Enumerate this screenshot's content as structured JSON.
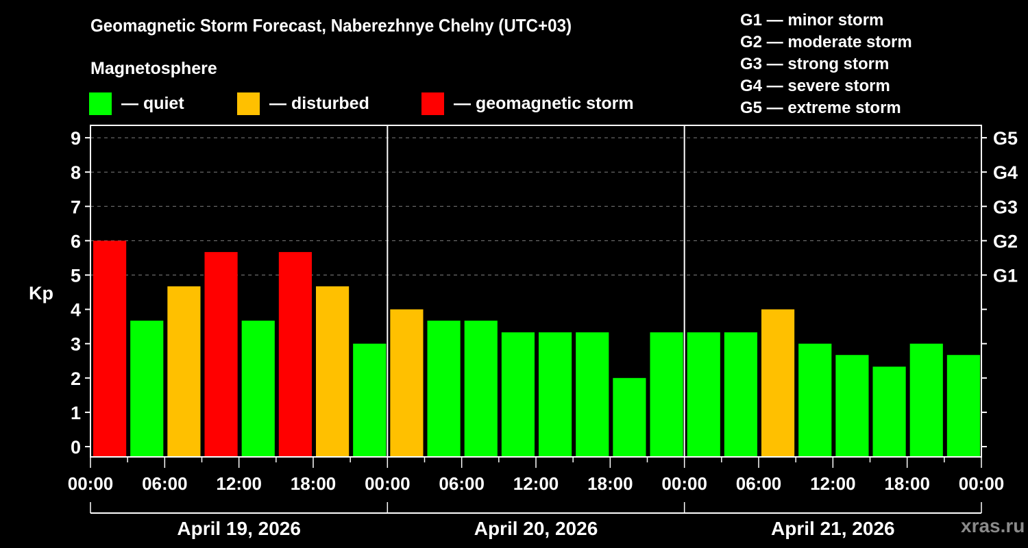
{
  "title": "Geomagnetic Storm Forecast, Naberezhnye Chelny (UTC+03)",
  "subtitle": "Magnetosphere",
  "legend": [
    {
      "label": "— quiet",
      "color": "#00ff00"
    },
    {
      "label": "— disturbed",
      "color": "#ffc000"
    },
    {
      "label": "— geomagnetic storm",
      "color": "#ff0000"
    }
  ],
  "g_legend": [
    "G1 — minor storm",
    "G2 — moderate storm",
    "G3 — strong storm",
    "G4 — severe storm",
    "G5 — extreme storm"
  ],
  "watermark": "xras.ru",
  "colors": {
    "quiet": "#00ff00",
    "disturbed": "#ffc000",
    "storm": "#ff0000",
    "grid": "#808080"
  },
  "chart_data": {
    "type": "bar",
    "title": "Geomagnetic Storm Forecast, Naberezhnye Chelny (UTC+03)",
    "ylabel": "Kp",
    "ylim": [
      0,
      9
    ],
    "yticks": [
      0,
      1,
      2,
      3,
      4,
      5,
      6,
      7,
      8,
      9
    ],
    "right_axis_labels": [
      {
        "kp": 5,
        "label": "G1"
      },
      {
        "kp": 6,
        "label": "G2"
      },
      {
        "kp": 7,
        "label": "G3"
      },
      {
        "kp": 8,
        "label": "G4"
      },
      {
        "kp": 9,
        "label": "G5"
      }
    ],
    "xtick_labels": [
      "00:00",
      "06:00",
      "12:00",
      "18:00",
      "00:00",
      "06:00",
      "12:00",
      "18:00",
      "00:00",
      "06:00",
      "12:00",
      "18:00",
      "00:00"
    ],
    "days": [
      "April 19, 2026",
      "April 20, 2026",
      "April 21, 2026"
    ],
    "grid": "dashed horizontal at Kp 5-9",
    "interval_hours": 3,
    "values": [
      6.0,
      3.67,
      4.67,
      5.67,
      3.67,
      5.67,
      4.67,
      3.0,
      4.0,
      3.67,
      3.67,
      3.33,
      3.33,
      3.33,
      2.0,
      3.33,
      3.33,
      3.33,
      4.0,
      3.0,
      2.67,
      2.33,
      3.0,
      2.67
    ],
    "categories_status": [
      "storm",
      "quiet",
      "disturbed",
      "storm",
      "quiet",
      "storm",
      "disturbed",
      "quiet",
      "disturbed",
      "quiet",
      "quiet",
      "quiet",
      "quiet",
      "quiet",
      "quiet",
      "quiet",
      "quiet",
      "quiet",
      "disturbed",
      "quiet",
      "quiet",
      "quiet",
      "quiet",
      "quiet"
    ]
  }
}
